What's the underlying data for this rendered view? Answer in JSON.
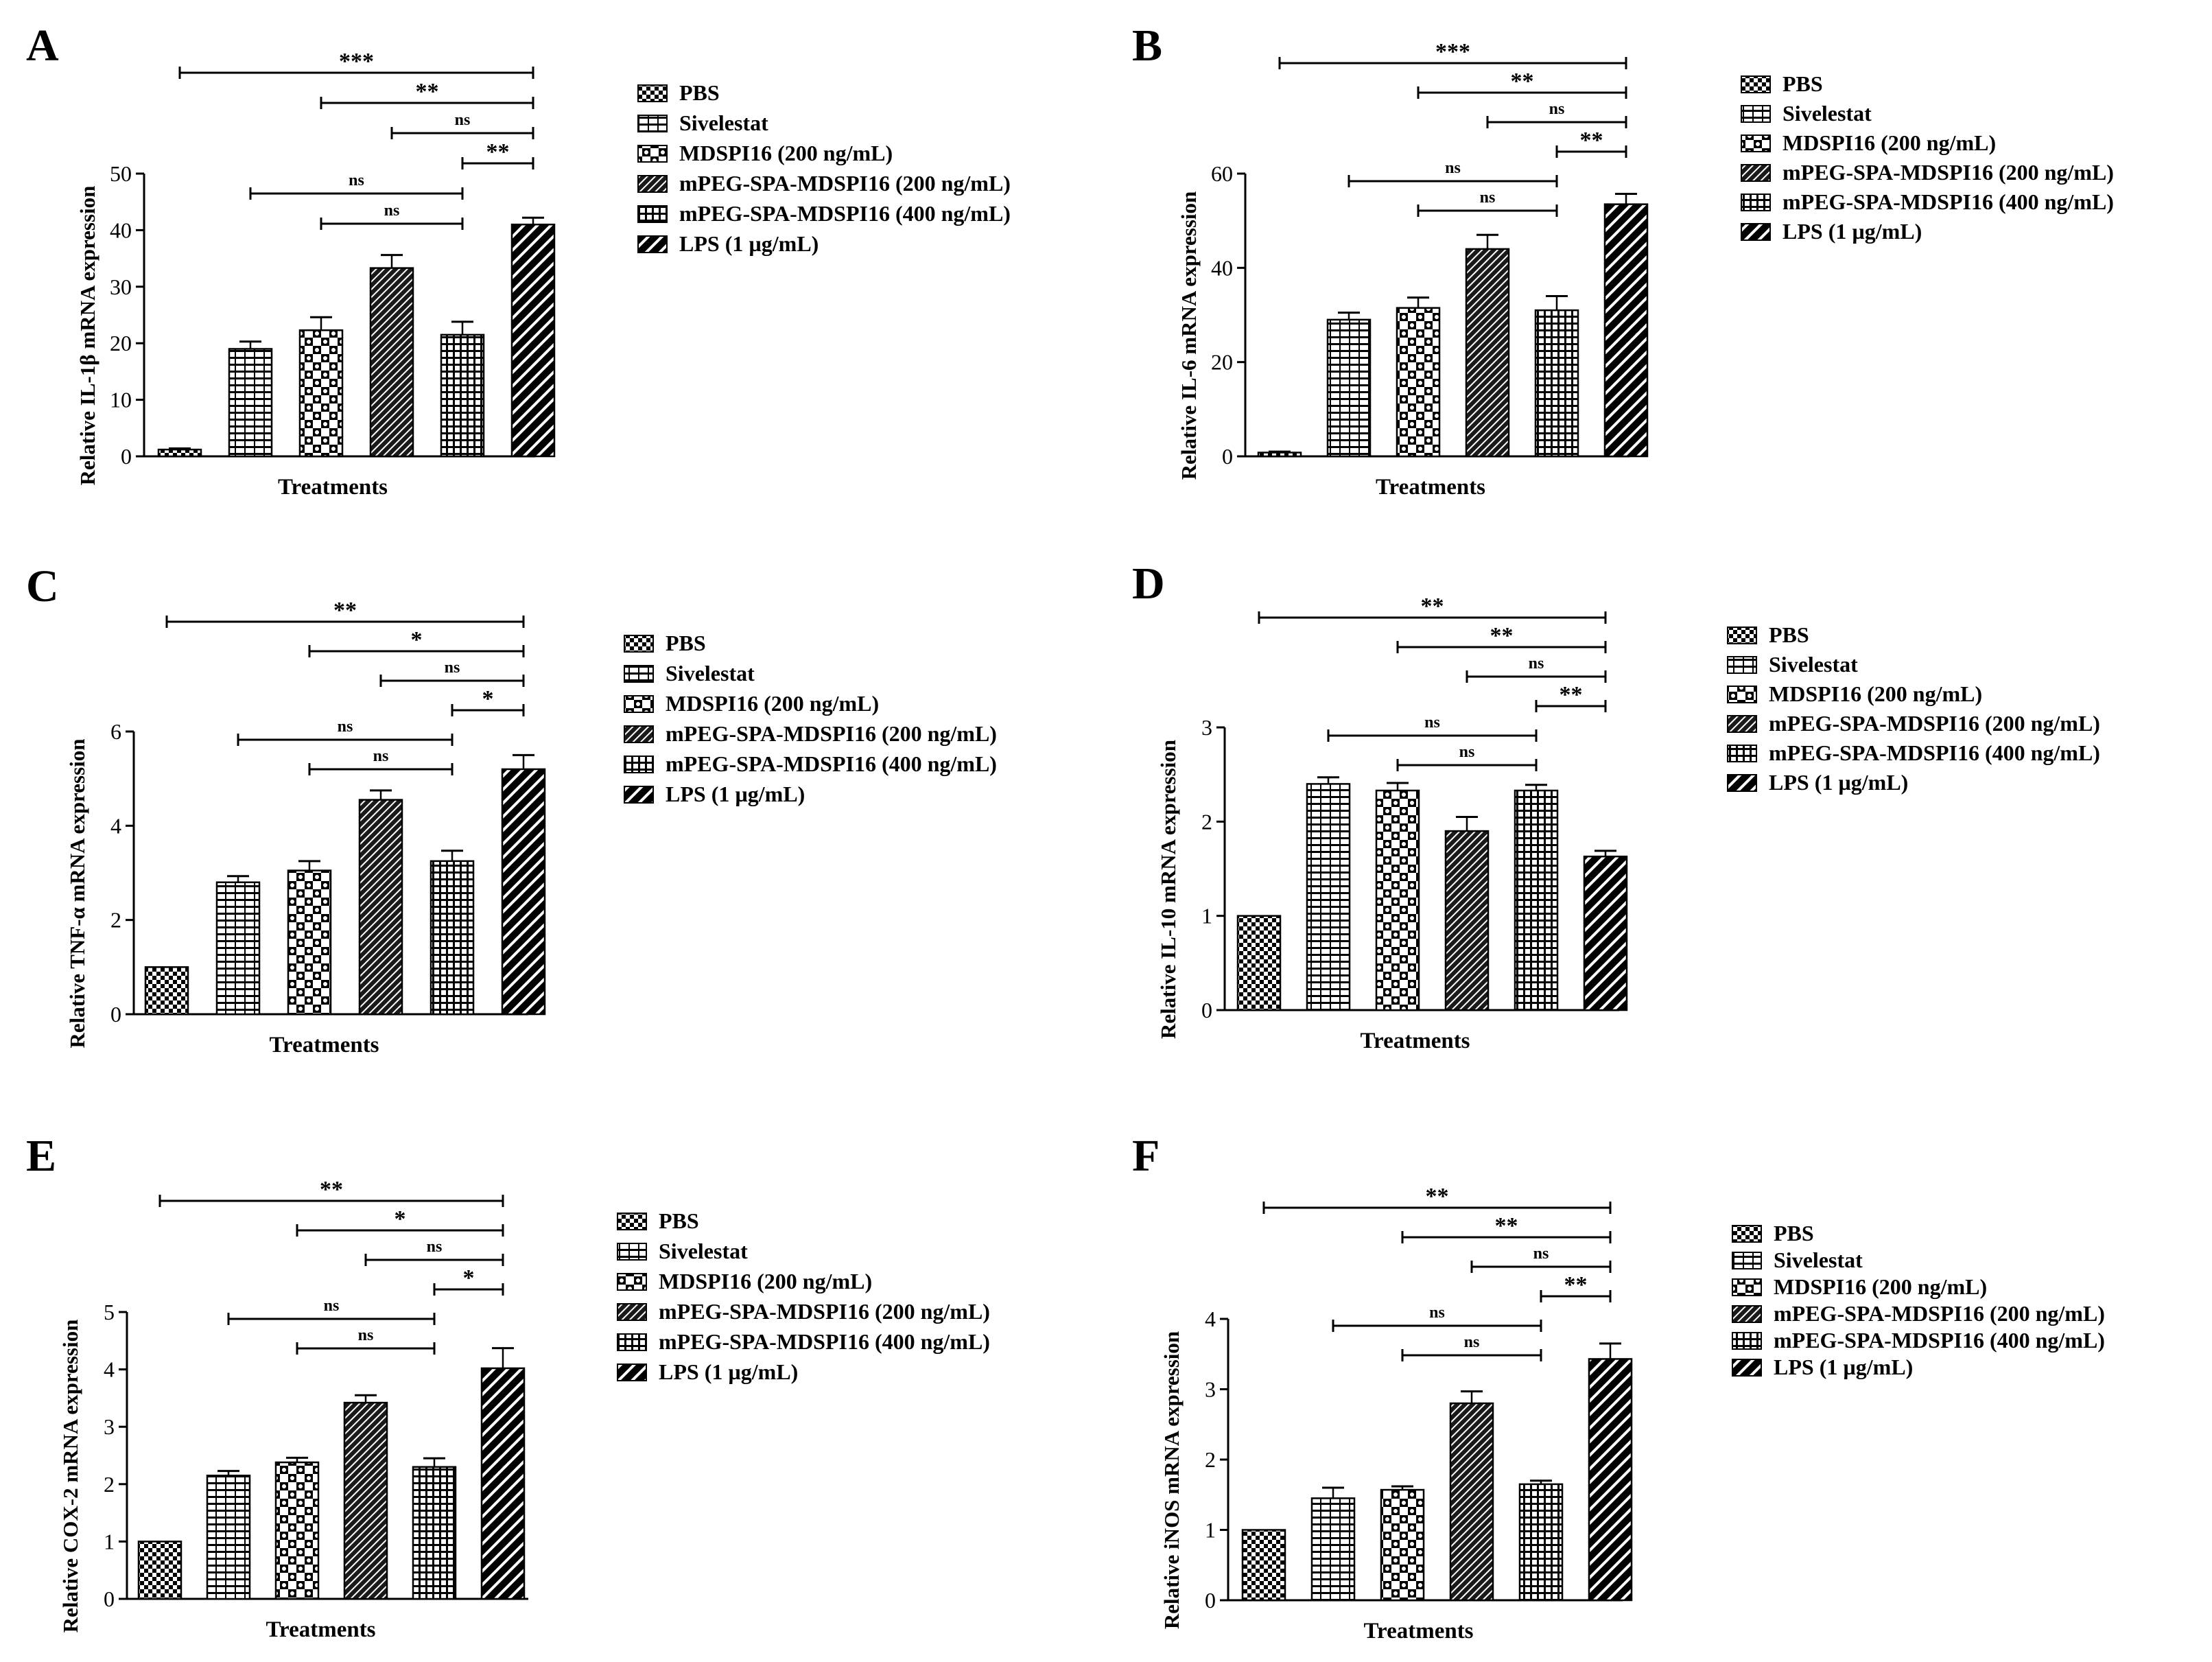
{
  "legend": [
    {
      "label": "PBS",
      "pattern": "pat-pbs"
    },
    {
      "label": "Sivelestat",
      "pattern": "pat-siv"
    },
    {
      "label": "MDSPI16 (200 ng/mL)",
      "pattern": "pat-mdspi"
    },
    {
      "label": "mPEG-SPA-MDSPI16 (200 ng/mL)",
      "pattern": "pat-peg200"
    },
    {
      "label": "mPEG-SPA-MDSPI16 (400 ng/mL)",
      "pattern": "pat-peg400"
    },
    {
      "label": "LPS (1 µg/mL)",
      "pattern": "pat-lps"
    }
  ],
  "colors": {
    "ink": "#000000",
    "background": "#ffffff"
  },
  "chart_data": [
    {
      "panel": "A",
      "type": "bar",
      "ylabel": "Relative IL-1β mRNA expression",
      "xlabel": "Treatments",
      "ylim": [
        0,
        50
      ],
      "yticks": [
        0,
        10,
        20,
        30,
        40,
        50
      ],
      "categories": [
        "PBS",
        "Sivelestat",
        "MDSPI16 (200 ng/mL)",
        "mPEG-SPA-MDSPI16 (200 ng/mL)",
        "mPEG-SPA-MDSPI16 (400 ng/mL)",
        "LPS (1 µg/mL)"
      ],
      "values": [
        1.2,
        19,
        22.3,
        33.3,
        21.5,
        41
      ],
      "errors": [
        0.2,
        1.3,
        2.3,
        2.3,
        2.3,
        1.2
      ],
      "significance": [
        {
          "from": 0,
          "to": 5,
          "label": "***"
        },
        {
          "from": 2,
          "to": 5,
          "label": "**"
        },
        {
          "from": 3,
          "to": 5,
          "label": "ns"
        },
        {
          "from": 4,
          "to": 5,
          "label": "**"
        },
        {
          "from": 1,
          "to": 4,
          "label": "ns"
        },
        {
          "from": 2,
          "to": 4,
          "label": "ns"
        }
      ]
    },
    {
      "panel": "B",
      "type": "bar",
      "ylabel": "Relative IL-6 mRNA expression",
      "xlabel": "Treatments",
      "ylim": [
        0,
        60
      ],
      "yticks": [
        0,
        20,
        40,
        60
      ],
      "categories": [
        "PBS",
        "Sivelestat",
        "MDSPI16 (200 ng/mL)",
        "mPEG-SPA-MDSPI16 (200 ng/mL)",
        "mPEG-SPA-MDSPI16 (400 ng/mL)",
        "LPS (1 µg/mL)"
      ],
      "values": [
        0.8,
        29,
        31.5,
        44,
        31,
        53.5
      ],
      "errors": [
        0.2,
        1.5,
        2.2,
        3,
        3,
        2.2
      ],
      "significance": [
        {
          "from": 0,
          "to": 5,
          "label": "***"
        },
        {
          "from": 2,
          "to": 5,
          "label": "**"
        },
        {
          "from": 3,
          "to": 5,
          "label": "ns"
        },
        {
          "from": 4,
          "to": 5,
          "label": "**"
        },
        {
          "from": 1,
          "to": 4,
          "label": "ns"
        },
        {
          "from": 2,
          "to": 4,
          "label": "ns"
        }
      ]
    },
    {
      "panel": "C",
      "type": "bar",
      "ylabel": "Relative TNF-α mRNA expression",
      "xlabel": "Treatments",
      "ylim": [
        0,
        6
      ],
      "yticks": [
        0,
        2,
        4,
        6
      ],
      "categories": [
        "PBS",
        "Sivelestat",
        "MDSPI16 (200 ng/mL)",
        "mPEG-SPA-MDSPI16 (200 ng/mL)",
        "mPEG-SPA-MDSPI16 (400 ng/mL)",
        "LPS (1 µg/mL)"
      ],
      "values": [
        1,
        2.8,
        3.05,
        4.55,
        3.25,
        5.2
      ],
      "errors": [
        0,
        0.13,
        0.2,
        0.2,
        0.22,
        0.3
      ],
      "significance": [
        {
          "from": 0,
          "to": 5,
          "label": "**"
        },
        {
          "from": 2,
          "to": 5,
          "label": "*"
        },
        {
          "from": 3,
          "to": 5,
          "label": "ns"
        },
        {
          "from": 4,
          "to": 5,
          "label": "*"
        },
        {
          "from": 1,
          "to": 4,
          "label": "ns"
        },
        {
          "from": 2,
          "to": 4,
          "label": "ns"
        }
      ]
    },
    {
      "panel": "D",
      "type": "bar",
      "ylabel": "Relative IL-10 mRNA expression",
      "xlabel": "Treatments",
      "ylim": [
        0,
        3
      ],
      "yticks": [
        0,
        1,
        2,
        3
      ],
      "categories": [
        "PBS",
        "Sivelestat",
        "MDSPI16 (200 ng/mL)",
        "mPEG-SPA-MDSPI16 (200 ng/mL)",
        "mPEG-SPA-MDSPI16 (400 ng/mL)",
        "LPS (1 µg/mL)"
      ],
      "values": [
        1,
        2.4,
        2.33,
        1.9,
        2.33,
        1.63
      ],
      "errors": [
        0,
        0.07,
        0.08,
        0.15,
        0.06,
        0.06
      ],
      "significance": [
        {
          "from": 0,
          "to": 5,
          "label": "**"
        },
        {
          "from": 2,
          "to": 5,
          "label": "**"
        },
        {
          "from": 3,
          "to": 5,
          "label": "ns"
        },
        {
          "from": 4,
          "to": 5,
          "label": "**"
        },
        {
          "from": 1,
          "to": 4,
          "label": "ns"
        },
        {
          "from": 2,
          "to": 4,
          "label": "ns"
        }
      ]
    },
    {
      "panel": "E",
      "type": "bar",
      "ylabel": "Relative COX-2 mRNA expression",
      "xlabel": "Treatments",
      "ylim": [
        0,
        5
      ],
      "yticks": [
        0,
        1,
        2,
        3,
        4,
        5
      ],
      "categories": [
        "PBS",
        "Sivelestat",
        "MDSPI16 (200 ng/mL)",
        "mPEG-SPA-MDSPI16 (200 ng/mL)",
        "mPEG-SPA-MDSPI16 (400 ng/mL)",
        "LPS (1 µg/mL)"
      ],
      "values": [
        1,
        2.15,
        2.38,
        3.42,
        2.3,
        4.02
      ],
      "errors": [
        0,
        0.08,
        0.08,
        0.13,
        0.15,
        0.35
      ],
      "significance": [
        {
          "from": 0,
          "to": 5,
          "label": "**"
        },
        {
          "from": 2,
          "to": 5,
          "label": "*"
        },
        {
          "from": 3,
          "to": 5,
          "label": "ns"
        },
        {
          "from": 4,
          "to": 5,
          "label": "*"
        },
        {
          "from": 1,
          "to": 4,
          "label": "ns"
        },
        {
          "from": 2,
          "to": 4,
          "label": "ns"
        }
      ]
    },
    {
      "panel": "F",
      "type": "bar",
      "ylabel": "Relative iNOS mRNA expression",
      "xlabel": "Treatments",
      "ylim": [
        0,
        4
      ],
      "yticks": [
        0,
        1,
        2,
        3,
        4
      ],
      "categories": [
        "PBS",
        "Sivelestat",
        "MDSPI16 (200 ng/mL)",
        "mPEG-SPA-MDSPI16 (200 ng/mL)",
        "mPEG-SPA-MDSPI16 (400 ng/mL)",
        "LPS (1 µg/mL)"
      ],
      "values": [
        1,
        1.45,
        1.57,
        2.8,
        1.65,
        3.43
      ],
      "errors": [
        0,
        0.15,
        0.05,
        0.17,
        0.05,
        0.22
      ],
      "significance": [
        {
          "from": 0,
          "to": 5,
          "label": "**"
        },
        {
          "from": 2,
          "to": 5,
          "label": "**"
        },
        {
          "from": 3,
          "to": 5,
          "label": "ns"
        },
        {
          "from": 4,
          "to": 5,
          "label": "**"
        },
        {
          "from": 1,
          "to": 4,
          "label": "ns"
        },
        {
          "from": 2,
          "to": 4,
          "label": "ns"
        }
      ]
    }
  ]
}
